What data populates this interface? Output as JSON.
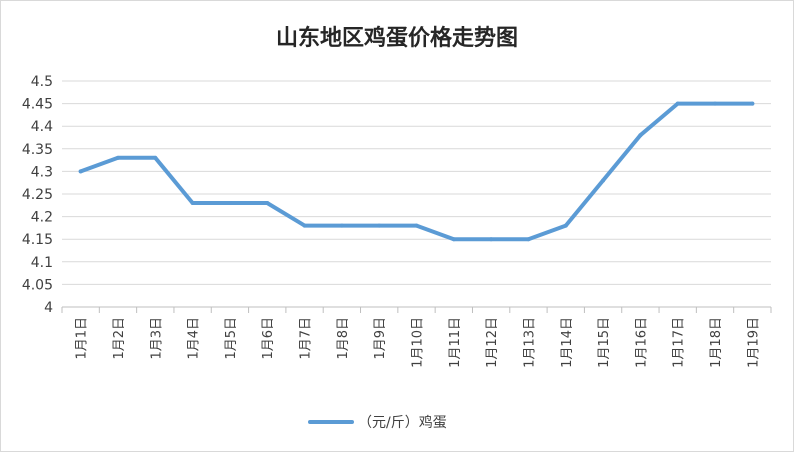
{
  "chart_data": {
    "type": "line",
    "title": "山东地区鸡蛋价格走势图",
    "categories": [
      "1月1日",
      "1月2日",
      "1月3日",
      "1月4日",
      "1月5日",
      "1月6日",
      "1月7日",
      "1月8日",
      "1月9日",
      "1月10日",
      "1月11日",
      "1月12日",
      "1月13日",
      "1月14日",
      "1月15日",
      "1月16日",
      "1月17日",
      "1月18日",
      "1月19日"
    ],
    "series": [
      {
        "name": "（元/斤）鸡蛋",
        "values": [
          4.3,
          4.33,
          4.33,
          4.23,
          4.23,
          4.23,
          4.18,
          4.18,
          4.18,
          4.18,
          4.15,
          4.15,
          4.15,
          4.18,
          4.28,
          4.38,
          4.45,
          4.45,
          4.45
        ],
        "color": "#5b9bd5"
      }
    ],
    "y_ticks": [
      "4.5",
      "4.45",
      "4.4",
      "4.35",
      "4.3",
      "4.25",
      "4.2",
      "4.15",
      "4.1",
      "4.05",
      "4"
    ],
    "ylim": [
      4,
      4.5
    ],
    "grid": true,
    "legend_position": "bottom"
  }
}
